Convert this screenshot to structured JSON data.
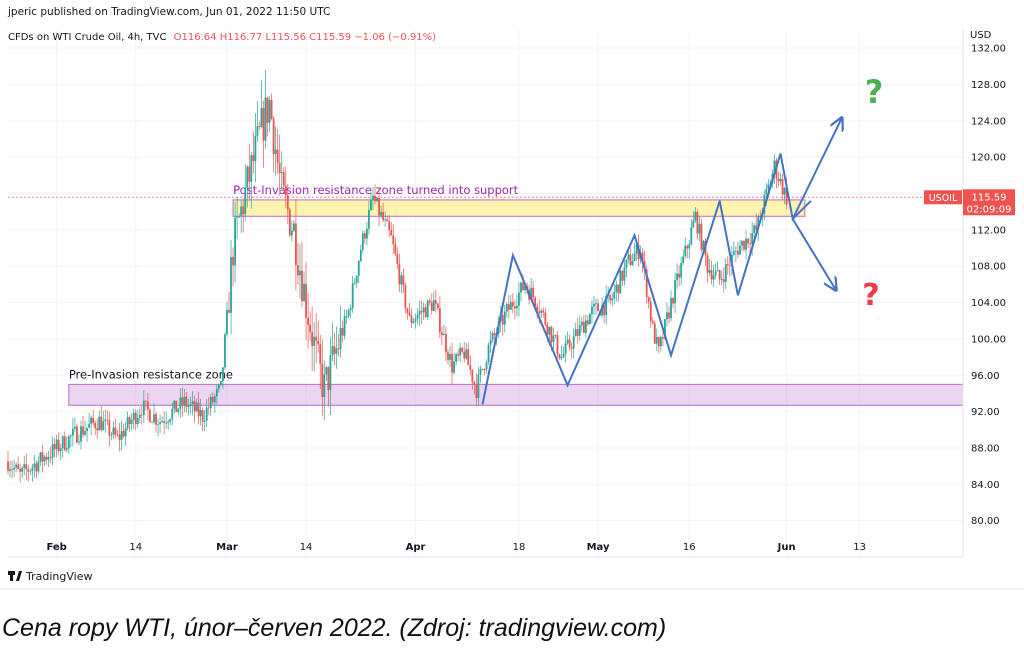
{
  "header": {
    "published": "jperic published on TradingView.com, Jun 01, 2022 11:50 UTC",
    "symbol": "CFDs on WTI Crude Oil, 4h, TVC",
    "ohlc": "O116.64 H116.77 L115.56 C115.59 −1.06 (−0.91%)"
  },
  "price_label": {
    "symbol": "USOIL",
    "price": "115.59",
    "countdown": "02:09:09"
  },
  "branding": "TradingView",
  "caption": "Cena ropy WTI, únor–červen 2022. (Zdroj: tradingview.com)",
  "colors": {
    "up": "#26a69a",
    "down": "#ef5350",
    "pattern": "#4472c4",
    "zone": "#ba68c8",
    "yellow_zone": "#fff3b0",
    "green_q": "#4caf50",
    "red_q": "#ef3b4a"
  },
  "chart_data": {
    "type": "candlestick",
    "currency": "USD",
    "ylim": [
      76,
      134
    ],
    "y_ticks": [
      80,
      84,
      88,
      92,
      96,
      100,
      104,
      108,
      112,
      116,
      120,
      124,
      128,
      132
    ],
    "y_tick_labels": [
      "80.00",
      "84.00",
      "88.00",
      "92.00",
      "96.00",
      "100.00",
      "104.00",
      "108.00",
      "112.00",
      "116.00",
      "120.00",
      "124.00",
      "128.00",
      "132.00"
    ],
    "x_range": [
      "2022-01-24",
      "2022-06-30"
    ],
    "x_ticks": [
      {
        "date": "2022-02-01",
        "label": "Feb"
      },
      {
        "date": "2022-02-14",
        "label": "14"
      },
      {
        "date": "2022-03-01",
        "label": "Mar"
      },
      {
        "date": "2022-03-14",
        "label": "14"
      },
      {
        "date": "2022-04-01",
        "label": "Apr"
      },
      {
        "date": "2022-04-18",
        "label": "18"
      },
      {
        "date": "2022-05-01",
        "label": "May"
      },
      {
        "date": "2022-05-16",
        "label": "16"
      },
      {
        "date": "2022-06-01",
        "label": "Jun"
      },
      {
        "date": "2022-06-13",
        "label": "13"
      }
    ],
    "price_path": [
      [
        "2022-01-24",
        86.5
      ],
      [
        "2022-01-26",
        85
      ],
      [
        "2022-01-31",
        87.5
      ],
      [
        "2022-02-04",
        89.5
      ],
      [
        "2022-02-08",
        91
      ],
      [
        "2022-02-11",
        89
      ],
      [
        "2022-02-15",
        92.5
      ],
      [
        "2022-02-18",
        91
      ],
      [
        "2022-02-22",
        93
      ],
      [
        "2022-02-25",
        91.5
      ],
      [
        "2022-02-28",
        94.5
      ],
      [
        "2022-03-02",
        110
      ],
      [
        "2022-03-04",
        116
      ],
      [
        "2022-03-07",
        124
      ],
      [
        "2022-03-08",
        126
      ],
      [
        "2022-03-10",
        116
      ],
      [
        "2022-03-12",
        112
      ],
      [
        "2022-03-14",
        104
      ],
      [
        "2022-03-16",
        97
      ],
      [
        "2022-03-17",
        94.5
      ],
      [
        "2022-03-21",
        103
      ],
      [
        "2022-03-23",
        110
      ],
      [
        "2022-03-25",
        115.5
      ],
      [
        "2022-03-28",
        111
      ],
      [
        "2022-03-31",
        102
      ],
      [
        "2022-04-04",
        104
      ],
      [
        "2022-04-07",
        97
      ],
      [
        "2022-04-09",
        98.5
      ],
      [
        "2022-04-11",
        94.5
      ],
      [
        "2022-04-13",
        99
      ],
      [
        "2022-04-16",
        103
      ],
      [
        "2022-04-19",
        106
      ],
      [
        "2022-04-21",
        104
      ],
      [
        "2022-04-25",
        98
      ],
      [
        "2022-04-27",
        100
      ],
      [
        "2022-04-30",
        103
      ],
      [
        "2022-05-03",
        104
      ],
      [
        "2022-05-06",
        108.5
      ],
      [
        "2022-05-08",
        110
      ],
      [
        "2022-05-10",
        101
      ],
      [
        "2022-05-11",
        98.5
      ],
      [
        "2022-05-13",
        104
      ],
      [
        "2022-05-16",
        111
      ],
      [
        "2022-05-17",
        113.5
      ],
      [
        "2022-05-19",
        108
      ],
      [
        "2022-05-21",
        106.5
      ],
      [
        "2022-05-24",
        110
      ],
      [
        "2022-05-27",
        112
      ],
      [
        "2022-05-30",
        119
      ],
      [
        "2022-06-01",
        115.5
      ]
    ],
    "zones": [
      {
        "label": "Post-Invasion resistance zone turned into support",
        "y0": 113.5,
        "y1": 115.3,
        "x0": "2022-03-02",
        "x1": "2022-06-04",
        "style": "yellow"
      },
      {
        "label": "Pre-Invasion resistance zone",
        "y0": 92.7,
        "y1": 95,
        "x0": "2022-02-03",
        "x1": "2022-06-30",
        "style": "purple"
      }
    ],
    "pattern_lines": [
      [
        [
          "2022-04-12",
          92.8
        ],
        [
          "2022-04-17",
          109.2
        ],
        [
          "2022-04-26",
          94.9
        ],
        [
          "2022-05-07",
          111.4
        ],
        [
          "2022-05-13",
          98.2
        ],
        [
          "2022-05-21",
          115.2
        ],
        [
          "2022-05-24",
          104.8
        ],
        [
          "2022-05-31",
          120.4
        ],
        [
          "2022-06-02",
          113.2
        ],
        [
          "2022-06-05",
          115.2
        ]
      ],
      [
        [
          "2022-06-02",
          113.2
        ],
        [
          "2022-06-10",
          124.2
        ]
      ],
      [
        [
          "2022-06-02",
          113.2
        ],
        [
          "2022-06-09",
          105.5
        ]
      ]
    ],
    "last_price": 115.59
  }
}
